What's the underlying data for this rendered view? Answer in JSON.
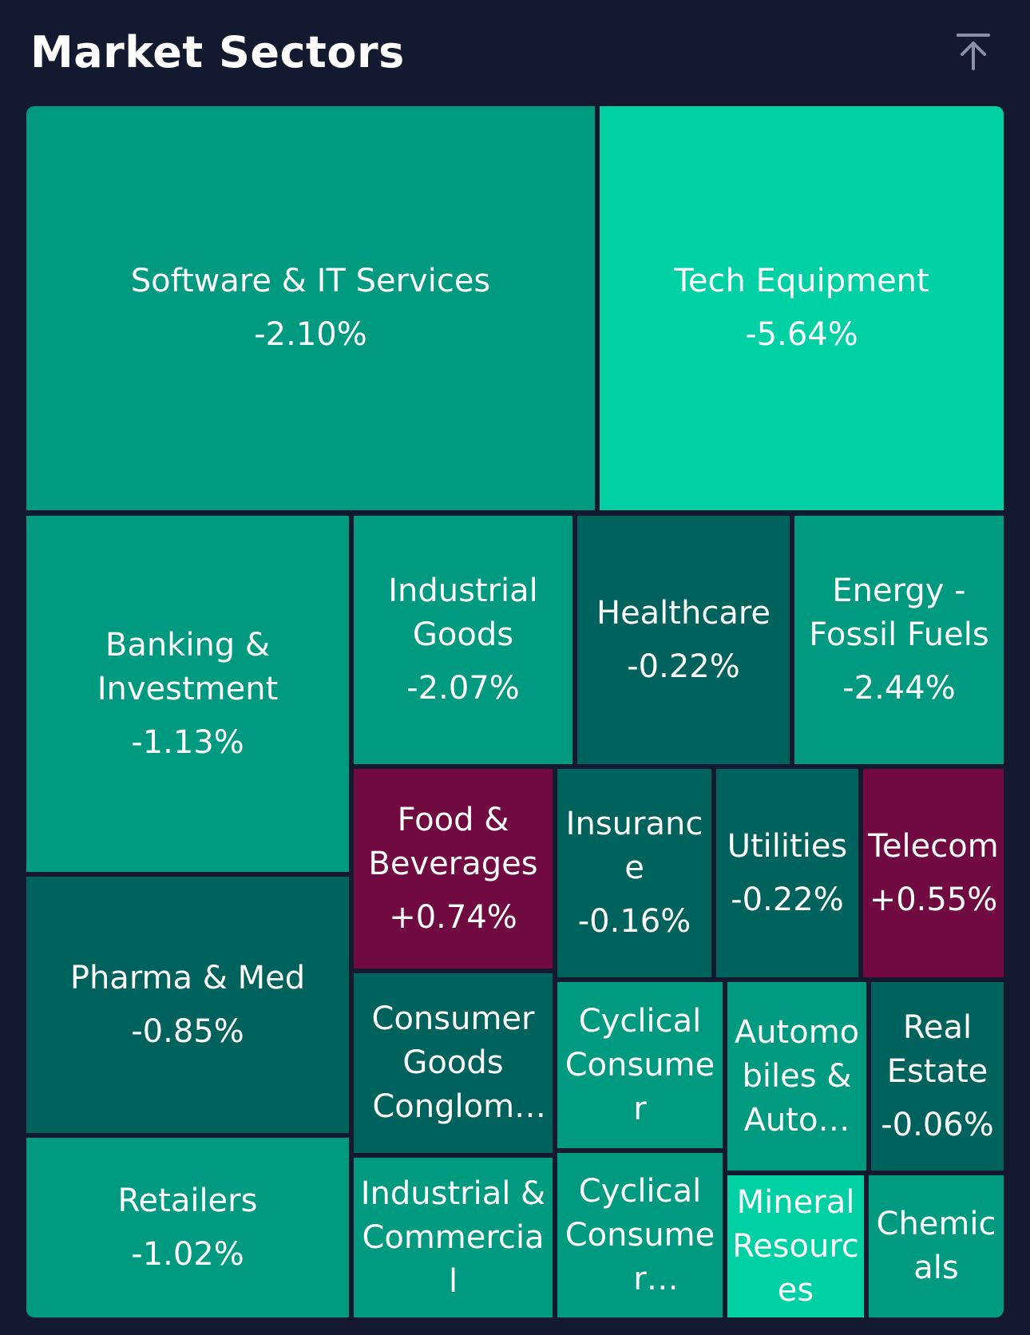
{
  "header": {
    "title": "Market Sectors",
    "collapse_icon": "arrow-up-to-line-icon"
  },
  "colors": {
    "background": "#131a30",
    "mid_green": "#009a80",
    "bright_green": "#00d1a4",
    "dark_teal": "#00625c",
    "magenta": "#720a42"
  },
  "sectors": [
    {
      "name": "Software & IT Services",
      "change": "-2.10%",
      "color": "#009a80"
    },
    {
      "name": "Tech Equipment",
      "change": "-5.64%",
      "color": "#00d1a4"
    },
    {
      "name": "Banking & Investment",
      "change": "-1.13%",
      "color": "#009a80"
    },
    {
      "name": "Industrial Goods",
      "change": "-2.07%",
      "color": "#009a80"
    },
    {
      "name": "Healthcare",
      "change": "-0.22%",
      "color": "#00625c"
    },
    {
      "name": "Energy - Fossil Fuels",
      "change": "-2.44%",
      "color": "#009a80"
    },
    {
      "name": "Pharma & Med",
      "change": "-0.85%",
      "color": "#00625c"
    },
    {
      "name": "Food & Beverages",
      "change": "+0.74%",
      "color": "#720a42"
    },
    {
      "name": "Insurance",
      "change": "-0.16%",
      "color": "#00625c"
    },
    {
      "name": "Utilities",
      "change": "-0.22%",
      "color": "#00625c"
    },
    {
      "name": "Telecom",
      "change": "+0.55%",
      "color": "#720a42"
    },
    {
      "name": "Consumer Goods Conglome…",
      "change": "",
      "color": "#00625c"
    },
    {
      "name": "Cyclical Consumer",
      "change": "",
      "color": "#009a80"
    },
    {
      "name": "Automobiles & Auto…",
      "change": "",
      "color": "#009a80"
    },
    {
      "name": "Real Estate",
      "change": "-0.06%",
      "color": "#00625c"
    },
    {
      "name": "Retailers",
      "change": "-1.02%",
      "color": "#009a80"
    },
    {
      "name": "Industrial & Commercial",
      "change": "",
      "color": "#009a80"
    },
    {
      "name": "Cyclical Consumer Products",
      "change": "",
      "color": "#009a80"
    },
    {
      "name": "Mineral Resources",
      "change": "",
      "color": "#00d1a4"
    },
    {
      "name": "Chemicals",
      "change": "",
      "color": "#009a80"
    }
  ]
}
